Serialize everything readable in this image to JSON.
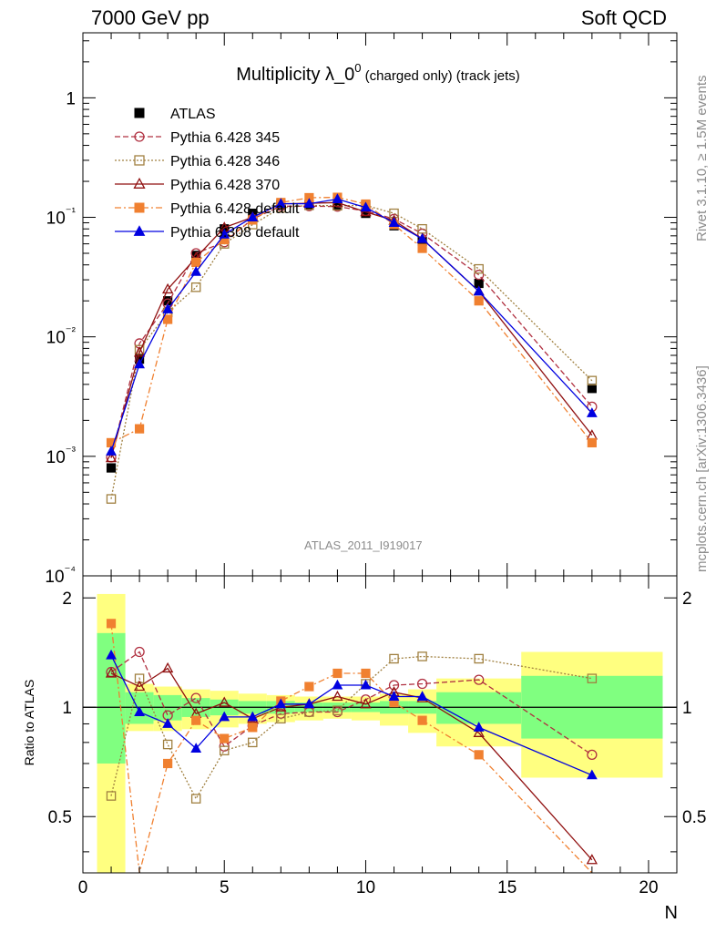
{
  "header": {
    "left_label": "7000 GeV pp",
    "right_label": "Soft QCD"
  },
  "side_labels": {
    "rivet": "Rivet 3.1.10, ≥ 1.5M events",
    "mcplots": "mcplots.cern.ch [arXiv:1306.3436]"
  },
  "chart_data": [
    {
      "type": "scatter",
      "title": "Multiplicity λ_0⁰ (charged only) (track jets)",
      "title_main": "Multiplicity λ_0",
      "title_sup": "0",
      "title_tail": " (charged only) (track jets)",
      "analysis_label": "ATLAS_2011_I919017",
      "y_scale": "log",
      "xlim": [
        0,
        21
      ],
      "ylim": [
        0.0001,
        3.5
      ],
      "y_tick_labels": [
        "1",
        "10⁻¹",
        "10⁻²",
        "10⁻³",
        "10⁻⁴"
      ],
      "legend_position": "top-left",
      "x": [
        1,
        2,
        3,
        4,
        5,
        6,
        7,
        8,
        9,
        10,
        11,
        12,
        14,
        18
      ],
      "series": [
        {
          "name": "ATLAS",
          "color": "#000000",
          "marker": "filled-square",
          "line": "none",
          "values": [
            0.0008,
            0.0065,
            0.02,
            0.048,
            0.08,
            0.108,
            0.128,
            0.128,
            0.127,
            0.108,
            0.085,
            0.063,
            0.028,
            0.0037
          ]
        },
        {
          "name": "Pythia 6.428 345",
          "color": "#b03040",
          "marker": "open-circle",
          "line": "dashed",
          "values": [
            0.00098,
            0.0088,
            0.019,
            0.05,
            0.062,
            0.097,
            0.124,
            0.124,
            0.123,
            0.113,
            0.097,
            0.073,
            0.033,
            0.0026
          ]
        },
        {
          "name": "Pythia 6.428 346",
          "color": "#a08040",
          "marker": "open-square",
          "line": "dotted",
          "values": [
            0.00044,
            0.0078,
            0.016,
            0.026,
            0.06,
            0.087,
            0.12,
            0.126,
            0.125,
            0.126,
            0.108,
            0.08,
            0.037,
            0.0043
          ]
        },
        {
          "name": "Pythia 6.428 370",
          "color": "#901010",
          "marker": "open-triangle",
          "line": "solid",
          "values": [
            0.00097,
            0.0074,
            0.025,
            0.046,
            0.082,
            0.1,
            0.13,
            0.131,
            0.133,
            0.111,
            0.094,
            0.066,
            0.024,
            0.0015
          ]
        },
        {
          "name": "Pythia 6.428 default",
          "color": "#f08030",
          "marker": "filled-square",
          "line": "dashdot",
          "values": [
            0.0013,
            0.0017,
            0.014,
            0.042,
            0.065,
            0.095,
            0.133,
            0.146,
            0.147,
            0.129,
            0.087,
            0.055,
            0.02,
            0.0013
          ]
        },
        {
          "name": "Pythia 6.308 default",
          "color": "#0000e0",
          "marker": "filled-triangle",
          "line": "solid",
          "values": [
            0.0011,
            0.0059,
            0.017,
            0.035,
            0.072,
            0.1,
            0.13,
            0.13,
            0.142,
            0.121,
            0.09,
            0.066,
            0.024,
            0.0023
          ]
        }
      ]
    },
    {
      "type": "line",
      "ylabel": "Ratio to ATLAS",
      "xlabel": "N",
      "xlim": [
        0,
        21
      ],
      "ylim": [
        0.35,
        2.3
      ],
      "y_ticks": [
        0.5,
        1,
        2
      ],
      "x_ticks": [
        0,
        5,
        10,
        15,
        20
      ],
      "reference_line": 1,
      "bands": [
        {
          "x_lo": 0.5,
          "x_hi": 1.5,
          "stat_lo": 0.7,
          "stat_hi": 1.6,
          "tot_lo": 0.3,
          "tot_hi": 2.05
        },
        {
          "x_lo": 1.5,
          "x_hi": 2.5,
          "stat_lo": 0.9,
          "stat_hi": 1.1,
          "tot_lo": 0.86,
          "tot_hi": 1.16
        },
        {
          "x_lo": 2.5,
          "x_hi": 3.5,
          "stat_lo": 0.92,
          "stat_hi": 1.08,
          "tot_lo": 0.86,
          "tot_hi": 1.14
        },
        {
          "x_lo": 3.5,
          "x_hi": 4.5,
          "stat_lo": 0.94,
          "stat_hi": 1.06,
          "tot_lo": 0.87,
          "tot_hi": 1.12
        },
        {
          "x_lo": 4.5,
          "x_hi": 5.5,
          "stat_lo": 0.95,
          "stat_hi": 1.05,
          "tot_lo": 0.88,
          "tot_hi": 1.11
        },
        {
          "x_lo": 5.5,
          "x_hi": 6.5,
          "stat_lo": 0.96,
          "stat_hi": 1.04,
          "tot_lo": 0.9,
          "tot_hi": 1.09
        },
        {
          "x_lo": 6.5,
          "x_hi": 7.5,
          "stat_lo": 0.96,
          "stat_hi": 1.04,
          "tot_lo": 0.91,
          "tot_hi": 1.08
        },
        {
          "x_lo": 7.5,
          "x_hi": 8.5,
          "stat_lo": 0.97,
          "stat_hi": 1.03,
          "tot_lo": 0.92,
          "tot_hi": 1.07
        },
        {
          "x_lo": 8.5,
          "x_hi": 9.5,
          "stat_lo": 0.97,
          "stat_hi": 1.03,
          "tot_lo": 0.93,
          "tot_hi": 1.07
        },
        {
          "x_lo": 9.5,
          "x_hi": 10.5,
          "stat_lo": 0.97,
          "stat_hi": 1.03,
          "tot_lo": 0.92,
          "tot_hi": 1.07
        },
        {
          "x_lo": 10.5,
          "x_hi": 11.5,
          "stat_lo": 0.96,
          "stat_hi": 1.04,
          "tot_lo": 0.89,
          "tot_hi": 1.09
        },
        {
          "x_lo": 11.5,
          "x_hi": 12.5,
          "stat_lo": 0.96,
          "stat_hi": 1.04,
          "tot_lo": 0.85,
          "tot_hi": 1.12
        },
        {
          "x_lo": 12.5,
          "x_hi": 15.5,
          "stat_lo": 0.9,
          "stat_hi": 1.1,
          "tot_lo": 0.78,
          "tot_hi": 1.2
        },
        {
          "x_lo": 15.5,
          "x_hi": 20.5,
          "stat_lo": 0.82,
          "stat_hi": 1.22,
          "tot_lo": 0.64,
          "tot_hi": 1.42
        }
      ],
      "x": [
        1,
        2,
        3,
        4,
        5,
        6,
        7,
        8,
        9,
        10,
        11,
        12,
        14,
        18
      ],
      "series": [
        {
          "name": "Pythia 6.428 345",
          "color": "#b03040",
          "marker": "open-circle",
          "line": "dashed",
          "values": [
            1.25,
            1.42,
            0.95,
            1.06,
            0.78,
            0.89,
            0.96,
            0.97,
            0.97,
            1.05,
            1.15,
            1.16,
            1.19,
            0.74
          ]
        },
        {
          "name": "Pythia 6.428 346",
          "color": "#a08040",
          "marker": "open-square",
          "line": "dotted",
          "values": [
            0.57,
            1.2,
            0.79,
            0.56,
            0.76,
            0.8,
            0.93,
            0.97,
            0.98,
            1.16,
            1.36,
            1.38,
            1.36,
            1.2
          ]
        },
        {
          "name": "Pythia 6.428 370",
          "color": "#901010",
          "marker": "open-triangle",
          "line": "solid",
          "values": [
            1.24,
            1.14,
            1.28,
            0.96,
            1.03,
            0.93,
            1.0,
            1.02,
            1.07,
            1.02,
            1.1,
            1.06,
            0.85,
            0.38
          ]
        },
        {
          "name": "Pythia 6.428 default",
          "color": "#f08030",
          "marker": "filled-square",
          "line": "dashdot",
          "values": [
            1.7,
            0.26,
            0.7,
            0.92,
            0.82,
            0.88,
            1.04,
            1.14,
            1.24,
            1.24,
            1.03,
            0.92,
            0.74,
            0.34
          ]
        },
        {
          "name": "Pythia 6.308 default",
          "color": "#0000e0",
          "marker": "filled-triangle",
          "line": "solid",
          "values": [
            1.39,
            0.97,
            0.9,
            0.77,
            0.94,
            0.94,
            1.02,
            1.02,
            1.15,
            1.15,
            1.07,
            1.07,
            0.88,
            0.65
          ]
        }
      ]
    }
  ]
}
